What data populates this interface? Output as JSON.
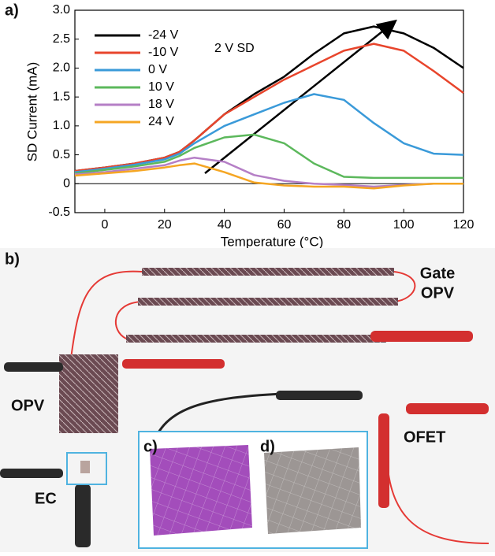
{
  "chart_data": {
    "type": "line",
    "panel_label": "a)",
    "annotation": "2 V SD",
    "xlabel": "Temperature (°C)",
    "ylabel": "SD Current (mA)",
    "xlim": [
      -10,
      120
    ],
    "xticks": [
      0,
      20,
      40,
      60,
      80,
      100,
      120
    ],
    "ylim": [
      -0.5,
      3.0
    ],
    "yticks": [
      -0.5,
      0,
      0.5,
      {
        "value": 1.0,
        "label": "1.0"
      },
      {
        "value": 1.5,
        "label": "1.5"
      },
      {
        "value": 2.0,
        "label": "2.0"
      },
      {
        "value": 2.5,
        "label": "2.5"
      },
      {
        "value": 3.0,
        "label": "3.0"
      }
    ],
    "x": [
      -10,
      0,
      10,
      20,
      25,
      30,
      40,
      50,
      60,
      70,
      80,
      90,
      100,
      110,
      120
    ],
    "series": [
      {
        "name": "-24 V",
        "color": "#000000",
        "values": [
          0.22,
          0.28,
          0.35,
          0.45,
          0.55,
          0.75,
          1.2,
          1.55,
          1.85,
          2.25,
          2.6,
          2.72,
          2.6,
          2.35,
          2.0
        ]
      },
      {
        "name": "-10 V",
        "color": "#e8452c",
        "values": [
          0.22,
          0.28,
          0.35,
          0.45,
          0.55,
          0.75,
          1.2,
          1.5,
          1.8,
          2.05,
          2.3,
          2.42,
          2.3,
          1.95,
          1.57
        ]
      },
      {
        "name": "0 V",
        "color": "#3a9ad9",
        "values": [
          0.2,
          0.26,
          0.33,
          0.42,
          0.52,
          0.7,
          1.0,
          1.2,
          1.4,
          1.55,
          1.45,
          1.05,
          0.7,
          0.52,
          0.5
        ]
      },
      {
        "name": "10 V",
        "color": "#5cb85c",
        "values": [
          0.18,
          0.24,
          0.3,
          0.38,
          0.48,
          0.62,
          0.8,
          0.85,
          0.7,
          0.35,
          0.12,
          0.1,
          0.1,
          0.1,
          0.1
        ]
      },
      {
        "name": "18 V",
        "color": "#b57fc6",
        "values": [
          0.16,
          0.2,
          0.26,
          0.32,
          0.4,
          0.45,
          0.38,
          0.15,
          0.05,
          0.0,
          -0.02,
          -0.05,
          -0.02,
          0.0,
          0.0
        ]
      },
      {
        "name": "24 V",
        "color": "#f5a623",
        "values": [
          0.14,
          0.18,
          0.22,
          0.28,
          0.32,
          0.35,
          0.2,
          0.02,
          -0.03,
          -0.05,
          -0.05,
          -0.08,
          -0.03,
          0.0,
          0.0
        ]
      }
    ]
  },
  "photo": {
    "panel_label": "b)",
    "gate_label": [
      "Gate",
      "OPV"
    ],
    "opv_label": "OPV",
    "ofet_label": "OFET",
    "ec_label": "EC",
    "inset_c": "c)",
    "inset_d": "d)"
  }
}
